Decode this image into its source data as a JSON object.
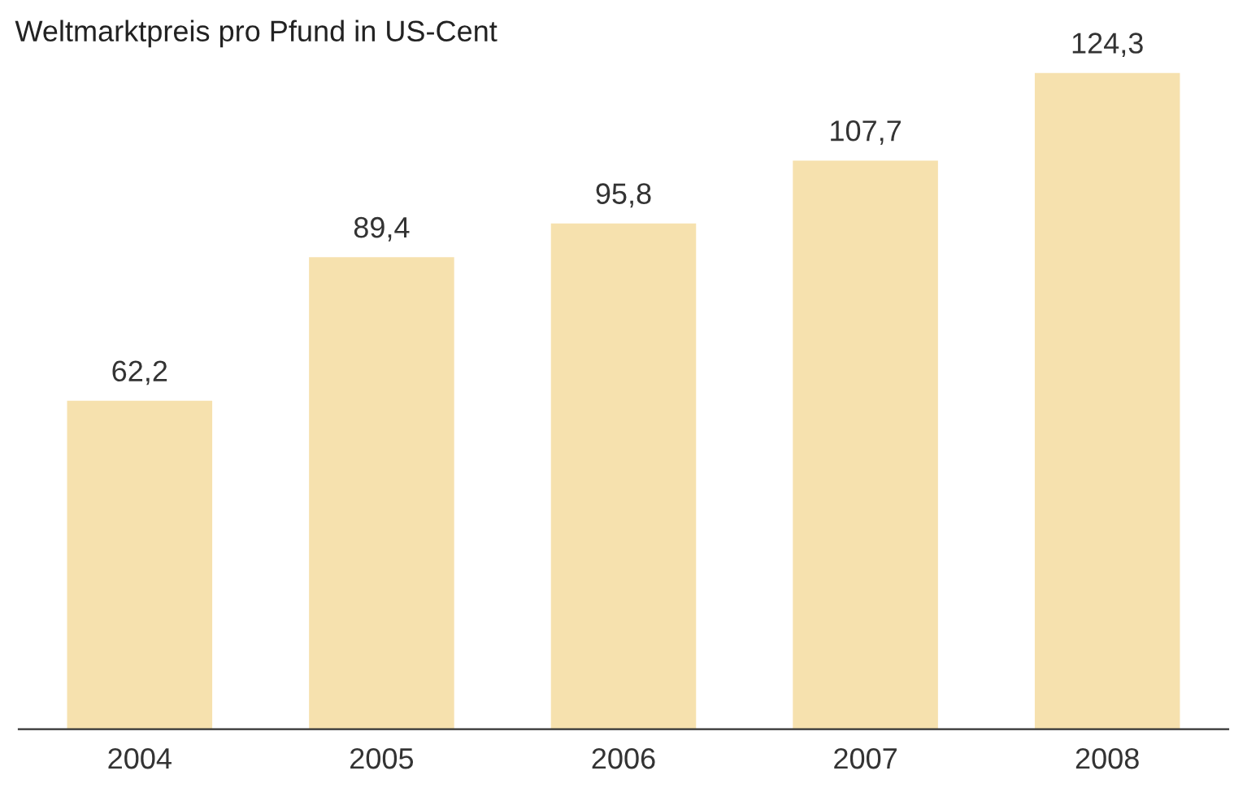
{
  "chart_data": {
    "type": "bar",
    "title": "Weltmarktpreis pro Pfund in US-Cent",
    "categories": [
      "2004",
      "2005",
      "2006",
      "2007",
      "2008"
    ],
    "values": [
      62.2,
      89.4,
      95.8,
      107.7,
      124.3
    ],
    "value_labels": [
      "62,2",
      "89,4",
      "95,8",
      "107,7",
      "124,3"
    ],
    "color": "#f6e1ae",
    "grid": false,
    "legend": false
  }
}
